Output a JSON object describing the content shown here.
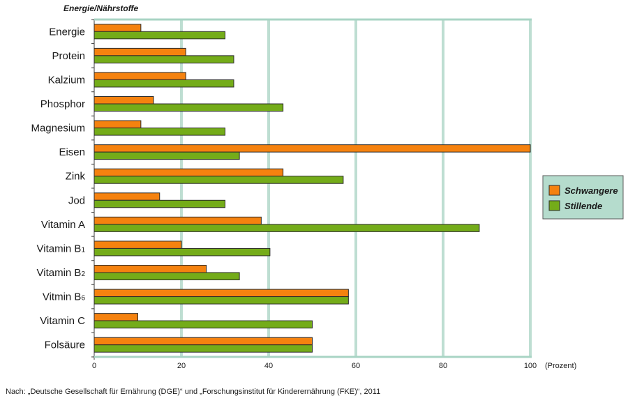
{
  "chart_data": {
    "type": "bar",
    "orientation": "horizontal",
    "ylabel": "Energie/Nährstoffe",
    "xunit": "(Prozent)",
    "xlim": [
      0,
      100
    ],
    "xticks": [
      "0",
      "20",
      "40",
      "60",
      "80",
      "100"
    ],
    "categories": [
      {
        "base": "Energie",
        "sub": ""
      },
      {
        "base": "Protein",
        "sub": ""
      },
      {
        "base": "Kalzium",
        "sub": ""
      },
      {
        "base": "Phosphor",
        "sub": ""
      },
      {
        "base": "Magnesium",
        "sub": ""
      },
      {
        "base": "Eisen",
        "sub": ""
      },
      {
        "base": "Zink",
        "sub": ""
      },
      {
        "base": "Jod",
        "sub": ""
      },
      {
        "base": "Vitamin A",
        "sub": ""
      },
      {
        "base": "Vitamin B",
        "sub": "1"
      },
      {
        "base": "Vitamin B",
        "sub": "2"
      },
      {
        "base": "Vitmin B",
        "sub": "6"
      },
      {
        "base": "Vitamin C",
        "sub": ""
      },
      {
        "base": "Folsäure",
        "sub": ""
      }
    ],
    "series": [
      {
        "name": "Schwangere",
        "color": "#f5820f",
        "values": [
          10.7,
          21,
          21,
          13.6,
          10.7,
          100,
          43.3,
          15,
          38.3,
          20,
          25.7,
          58.3,
          10,
          50
        ]
      },
      {
        "name": "Stillende",
        "color": "#74ac19",
        "values": [
          30,
          32,
          32,
          43.3,
          30,
          33.3,
          57.1,
          30,
          88.3,
          40.3,
          33.3,
          58.3,
          50,
          50
        ]
      }
    ],
    "legend_position": "right",
    "grid": true,
    "plot_background": "#ffffff",
    "grid_color": "#a8d4c4",
    "legend_background": "#b5dccd"
  },
  "source_note": "Nach:  „Deutsche Gesellschaft für Ernährung (DGE)“ und „Forschungsinstitut für Kinderernährung (FKE)“, 2011"
}
